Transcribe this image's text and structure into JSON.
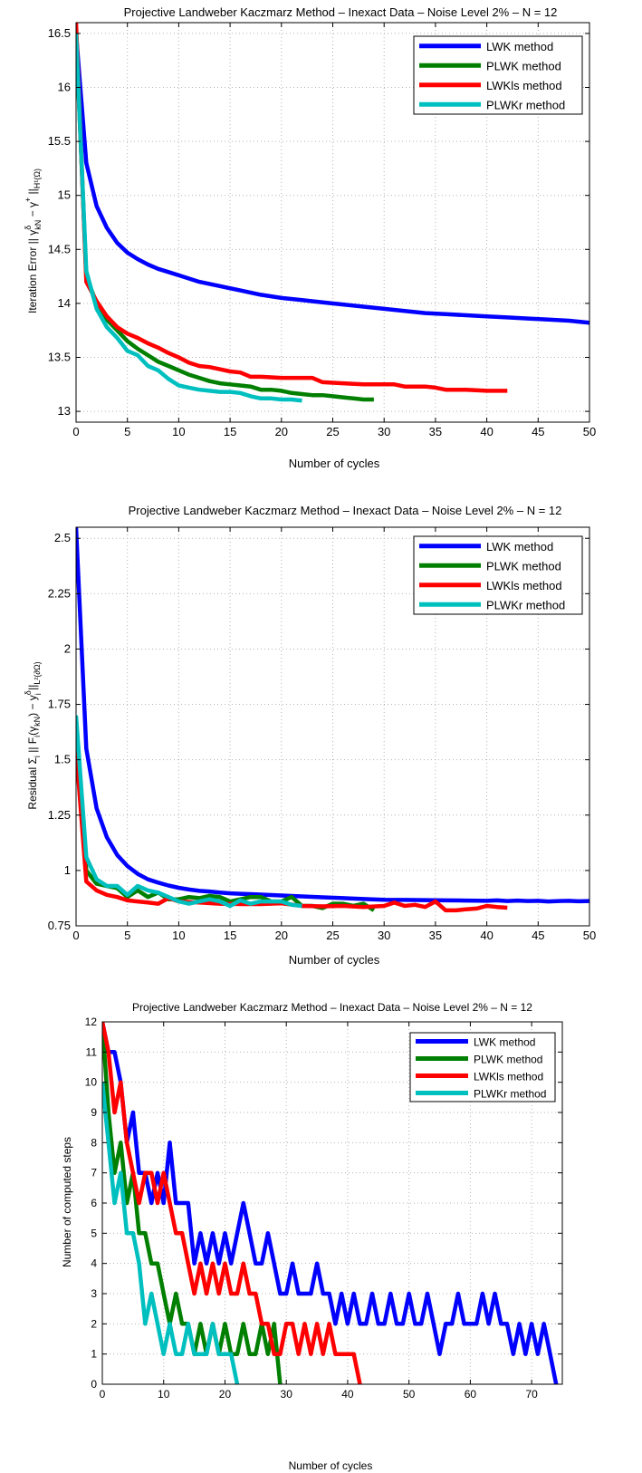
{
  "colors": {
    "LWK": "#0000ff",
    "PLWK": "#007f00",
    "LWKls": "#ff0000",
    "PLWKr": "#00bfbf",
    "grid": "#b4b4b4",
    "axis": "#000000"
  },
  "chart_data": [
    {
      "type": "line",
      "title": "Projective Landweber Kaczmarz Method  –  Inexact Data  –  Noise Level 2%  –  N = 12",
      "xlabel": "Number of cycles",
      "ylabel": "Iteration Error  || γ^δ_kN − γ^+ ||_H¹(Ω)",
      "xlim": [
        0,
        50
      ],
      "ylim": [
        12.9,
        16.6
      ],
      "xticks": [
        0,
        5,
        10,
        15,
        20,
        25,
        30,
        35,
        40,
        45,
        50
      ],
      "xtick_labels": [
        "0",
        "5",
        "10",
        "15",
        "20",
        "25",
        "30",
        "35",
        "40",
        "45",
        "50"
      ],
      "yticks": [
        13,
        13.5,
        14,
        14.5,
        15,
        15.5,
        16,
        16.5
      ],
      "ytick_labels": [
        "13",
        "13.5",
        "14",
        "14.5",
        "15",
        "15.5",
        "16",
        "16.5"
      ],
      "grid": true,
      "legend_position": "top-right",
      "series": [
        {
          "name": "LWK method",
          "color_key": "LWK",
          "x": [
            0,
            1,
            2,
            3,
            4,
            5,
            6,
            7,
            8,
            9,
            10,
            12,
            14,
            16,
            18,
            20,
            22,
            24,
            26,
            28,
            30,
            32,
            34,
            36,
            38,
            40,
            42,
            44,
            46,
            48,
            50
          ],
          "y": [
            16.5,
            15.3,
            14.9,
            14.7,
            14.56,
            14.47,
            14.41,
            14.36,
            14.32,
            14.29,
            14.26,
            14.2,
            14.16,
            14.12,
            14.08,
            14.05,
            14.03,
            14.01,
            13.99,
            13.97,
            13.95,
            13.93,
            13.91,
            13.9,
            13.89,
            13.88,
            13.87,
            13.86,
            13.85,
            13.84,
            13.82
          ]
        },
        {
          "name": "PLWK method",
          "color_key": "PLWK",
          "x": [
            0,
            1,
            2,
            3,
            4,
            5,
            6,
            7,
            8,
            9,
            10,
            11,
            12,
            13,
            14,
            15,
            16,
            17,
            18,
            19,
            20,
            21,
            22,
            23,
            24,
            25,
            26,
            27,
            28,
            29
          ],
          "y": [
            16.5,
            14.25,
            14.0,
            13.85,
            13.75,
            13.65,
            13.58,
            13.52,
            13.46,
            13.42,
            13.38,
            13.34,
            13.31,
            13.28,
            13.26,
            13.25,
            13.24,
            13.23,
            13.2,
            13.2,
            13.19,
            13.17,
            13.16,
            13.15,
            13.15,
            13.14,
            13.13,
            13.12,
            13.11,
            13.11
          ]
        },
        {
          "name": "LWKls method",
          "color_key": "LWKls",
          "x": [
            0,
            1,
            2,
            3,
            4,
            5,
            6,
            7,
            8,
            9,
            10,
            11,
            12,
            13,
            14,
            15,
            16,
            17,
            18,
            20,
            22,
            23,
            24,
            26,
            28,
            30,
            31,
            32,
            34,
            35,
            36,
            38,
            40,
            42
          ],
          "y": [
            16.6,
            14.2,
            14.02,
            13.88,
            13.78,
            13.72,
            13.68,
            13.63,
            13.59,
            13.54,
            13.5,
            13.45,
            13.42,
            13.41,
            13.39,
            13.37,
            13.36,
            13.32,
            13.32,
            13.31,
            13.31,
            13.31,
            13.27,
            13.26,
            13.25,
            13.25,
            13.25,
            13.23,
            13.23,
            13.22,
            13.2,
            13.2,
            13.19,
            13.19
          ]
        },
        {
          "name": "PLWKr method",
          "color_key": "PLWKr",
          "x": [
            0,
            1,
            2,
            3,
            4,
            5,
            6,
            7,
            8,
            9,
            10,
            11,
            12,
            13,
            14,
            15,
            16,
            17,
            18,
            19,
            20,
            21,
            22
          ],
          "y": [
            16.5,
            14.3,
            13.95,
            13.78,
            13.68,
            13.56,
            13.52,
            13.42,
            13.38,
            13.3,
            13.24,
            13.22,
            13.2,
            13.19,
            13.18,
            13.18,
            13.17,
            13.14,
            13.12,
            13.12,
            13.11,
            13.11,
            13.1
          ]
        }
      ]
    },
    {
      "type": "line",
      "title": "Projective Landweber Kaczmarz Method  –  Inexact Data  –  Noise Level 2%  –  N = 12",
      "xlabel": "Number of cycles",
      "ylabel": "Residual  Σ_i || F_i(γ_kN) − y^δ_i ||_L²(∂Ω)",
      "xlim": [
        0,
        50
      ],
      "ylim": [
        0.75,
        2.55
      ],
      "xticks": [
        0,
        5,
        10,
        15,
        20,
        25,
        30,
        35,
        40,
        45,
        50
      ],
      "xtick_labels": [
        "0",
        "5",
        "10",
        "15",
        "20",
        "25",
        "30",
        "35",
        "40",
        "45",
        "50"
      ],
      "yticks": [
        0.75,
        1,
        1.25,
        1.5,
        1.75,
        2,
        2.25,
        2.5
      ],
      "ytick_labels": [
        "0.75",
        "1",
        "1.25",
        "1.5",
        "1.75",
        "2",
        "2.25",
        "2.5"
      ],
      "grid": true,
      "legend_position": "top-right",
      "series": [
        {
          "name": "LWK method",
          "color_key": "LWK",
          "x": [
            0,
            1,
            2,
            3,
            4,
            5,
            6,
            7,
            8,
            9,
            10,
            11,
            12,
            13,
            14,
            15,
            16,
            17,
            18,
            19,
            20,
            22,
            24,
            26,
            28,
            30,
            32,
            34,
            36,
            38,
            40,
            41,
            42,
            43,
            44,
            45,
            46,
            47,
            48,
            49,
            50
          ],
          "y": [
            2.55,
            1.55,
            1.28,
            1.15,
            1.07,
            1.02,
            0.985,
            0.96,
            0.945,
            0.932,
            0.922,
            0.914,
            0.908,
            0.905,
            0.9,
            0.897,
            0.895,
            0.893,
            0.891,
            0.889,
            0.887,
            0.883,
            0.879,
            0.875,
            0.871,
            0.868,
            0.867,
            0.866,
            0.865,
            0.864,
            0.863,
            0.865,
            0.862,
            0.864,
            0.862,
            0.863,
            0.86,
            0.862,
            0.863,
            0.861,
            0.862
          ]
        },
        {
          "name": "PLWK method",
          "color_key": "PLWK",
          "x": [
            0,
            1,
            2,
            3,
            4,
            5,
            6,
            7,
            8,
            9,
            10,
            11,
            12,
            13,
            14,
            15,
            16,
            17,
            18,
            19,
            20,
            21,
            22,
            23,
            24,
            25,
            26,
            27,
            28,
            29
          ],
          "y": [
            1.68,
            1.0,
            0.94,
            0.93,
            0.92,
            0.88,
            0.91,
            0.88,
            0.9,
            0.87,
            0.87,
            0.88,
            0.875,
            0.885,
            0.88,
            0.86,
            0.87,
            0.88,
            0.88,
            0.86,
            0.86,
            0.88,
            0.84,
            0.84,
            0.83,
            0.85,
            0.85,
            0.84,
            0.85,
            0.82
          ]
        },
        {
          "name": "LWKls method",
          "color_key": "LWKls",
          "x": [
            0,
            1,
            2,
            3,
            4,
            5,
            6,
            7,
            8,
            9,
            10,
            12,
            14,
            16,
            18,
            20,
            22,
            24,
            26,
            28,
            30,
            31,
            32,
            33,
            34,
            35,
            36,
            37,
            38,
            39,
            40,
            41,
            42
          ],
          "y": [
            1.55,
            0.95,
            0.91,
            0.89,
            0.88,
            0.865,
            0.86,
            0.855,
            0.85,
            0.875,
            0.86,
            0.855,
            0.85,
            0.848,
            0.848,
            0.852,
            0.84,
            0.838,
            0.84,
            0.835,
            0.84,
            0.855,
            0.84,
            0.845,
            0.835,
            0.86,
            0.82,
            0.82,
            0.825,
            0.828,
            0.84,
            0.835,
            0.832
          ]
        },
        {
          "name": "PLWKr method",
          "color_key": "PLWKr",
          "x": [
            0,
            1,
            2,
            3,
            4,
            5,
            6,
            7,
            8,
            9,
            10,
            11,
            12,
            13,
            14,
            15,
            16,
            17,
            18,
            19,
            20,
            21,
            22
          ],
          "y": [
            1.7,
            1.06,
            0.96,
            0.93,
            0.93,
            0.89,
            0.93,
            0.91,
            0.9,
            0.88,
            0.86,
            0.85,
            0.86,
            0.87,
            0.86,
            0.84,
            0.865,
            0.85,
            0.86,
            0.86,
            0.86,
            0.845,
            0.84
          ]
        }
      ]
    },
    {
      "type": "line",
      "title": "Projective Landweber Kaczmarz Method  –  Inexact Data  –  Noise Level 2%  –  N = 12",
      "xlabel": "Number of cycles",
      "ylabel": "Number of computed steps",
      "xlim": [
        0,
        75
      ],
      "ylim": [
        0,
        12
      ],
      "xticks": [
        0,
        10,
        20,
        30,
        40,
        50,
        60,
        70
      ],
      "xtick_labels": [
        "0",
        "10",
        "20",
        "30",
        "40",
        "50",
        "60",
        "70"
      ],
      "yticks": [
        0,
        1,
        2,
        3,
        4,
        5,
        6,
        7,
        8,
        9,
        10,
        11,
        12
      ],
      "ytick_labels": [
        "0",
        "1",
        "2",
        "3",
        "4",
        "5",
        "6",
        "7",
        "8",
        "9",
        "10",
        "11",
        "12"
      ],
      "grid": true,
      "legend_position": "top-right",
      "series": [
        {
          "name": "LWK method",
          "color_key": "LWK",
          "x": [
            0,
            1,
            2,
            3,
            4,
            5,
            6,
            7,
            8,
            9,
            10,
            11,
            12,
            13,
            14,
            15,
            16,
            17,
            18,
            19,
            20,
            21,
            22,
            23,
            24,
            25,
            26,
            27,
            28,
            29,
            30,
            31,
            32,
            33,
            34,
            35,
            36,
            37,
            38,
            39,
            40,
            41,
            42,
            43,
            44,
            45,
            46,
            47,
            48,
            49,
            50,
            51,
            52,
            53,
            54,
            55,
            56,
            57,
            58,
            59,
            60,
            61,
            62,
            63,
            64,
            65,
            66,
            67,
            68,
            69,
            70,
            71,
            72,
            73,
            74
          ],
          "y": [
            12,
            11,
            11,
            10,
            8,
            9,
            7,
            7,
            6,
            7,
            6,
            8,
            6,
            6,
            6,
            4,
            5,
            4,
            5,
            4,
            5,
            4,
            5,
            6,
            5,
            4,
            4,
            5,
            4,
            3,
            3,
            4,
            3,
            3,
            3,
            4,
            3,
            3,
            2,
            3,
            2,
            3,
            2,
            2,
            3,
            2,
            2,
            3,
            2,
            2,
            3,
            2,
            2,
            3,
            2,
            1,
            2,
            2,
            3,
            2,
            2,
            2,
            3,
            2,
            3,
            2,
            2,
            1,
            2,
            1,
            2,
            1,
            2,
            1,
            0
          ]
        },
        {
          "name": "PLWK method",
          "color_key": "PLWK",
          "x": [
            0,
            1,
            2,
            3,
            4,
            5,
            6,
            7,
            8,
            9,
            10,
            11,
            12,
            13,
            14,
            15,
            16,
            17,
            18,
            19,
            20,
            21,
            22,
            23,
            24,
            25,
            26,
            27,
            28,
            29
          ],
          "y": [
            12,
            9,
            7,
            8,
            6,
            7,
            5,
            5,
            4,
            4,
            3,
            2,
            3,
            2,
            2,
            1,
            2,
            1,
            2,
            1,
            2,
            1,
            1,
            2,
            1,
            1,
            2,
            1,
            2,
            0
          ]
        },
        {
          "name": "LWKls method",
          "color_key": "LWKls",
          "x": [
            0,
            1,
            2,
            3,
            4,
            5,
            6,
            7,
            8,
            9,
            10,
            11,
            12,
            13,
            14,
            15,
            16,
            17,
            18,
            19,
            20,
            21,
            22,
            23,
            24,
            25,
            26,
            27,
            28,
            29,
            30,
            31,
            32,
            33,
            34,
            35,
            36,
            37,
            38,
            39,
            40,
            41,
            42
          ],
          "y": [
            12,
            11,
            9,
            10,
            8,
            7,
            6,
            7,
            7,
            6,
            7,
            6,
            5,
            5,
            4,
            3,
            4,
            3,
            4,
            3,
            4,
            3,
            3,
            4,
            3,
            3,
            2,
            2,
            1,
            1,
            2,
            2,
            1,
            2,
            1,
            2,
            1,
            2,
            1,
            1,
            1,
            1,
            0
          ]
        },
        {
          "name": "PLWKr method",
          "color_key": "PLWKr",
          "x": [
            0,
            1,
            2,
            3,
            4,
            5,
            6,
            7,
            8,
            9,
            10,
            11,
            12,
            13,
            14,
            15,
            16,
            17,
            18,
            19,
            20,
            21,
            22
          ],
          "y": [
            10,
            8,
            6,
            7,
            5,
            5,
            4,
            2,
            3,
            2,
            1,
            2,
            1,
            1,
            2,
            1,
            1,
            1,
            2,
            1,
            1,
            1,
            0
          ]
        }
      ]
    }
  ]
}
